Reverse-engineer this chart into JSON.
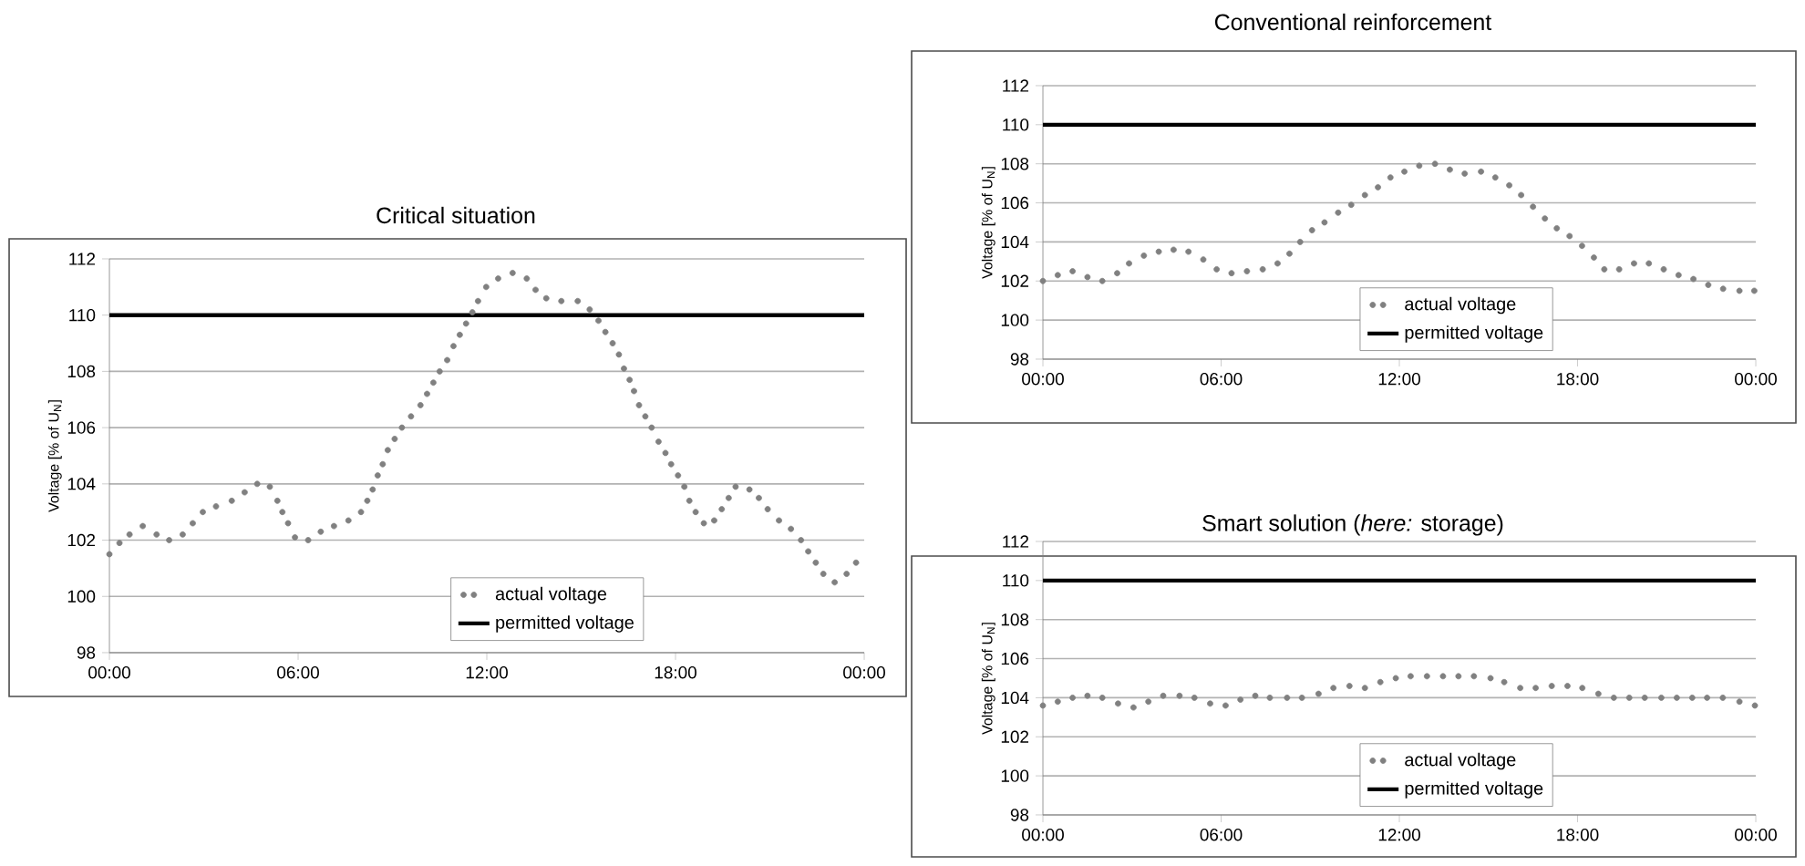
{
  "chart_data": [
    {
      "type": "scatter",
      "title": "Critical situation",
      "ylabel": "Voltage [% of U$_{N}$]",
      "xlim": [
        0,
        24
      ],
      "xticks": [
        {
          "value": 0,
          "label": "00:00"
        },
        {
          "value": 6,
          "label": "06:00"
        },
        {
          "value": 12,
          "label": "12:00"
        },
        {
          "value": 18,
          "label": "18:00"
        },
        {
          "value": 24,
          "label": "00:00"
        }
      ],
      "ylim": [
        98,
        112
      ],
      "yticks": [
        98,
        100,
        102,
        104,
        106,
        108,
        110,
        112
      ],
      "grid": "y",
      "legend": "bottom",
      "series": [
        {
          "name": "actual voltage",
          "marker": "circle",
          "color": "#808080",
          "x": [
            0,
            0.32,
            0.64,
            1.06,
            1.5,
            1.9,
            2.33,
            2.65,
            2.97,
            3.39,
            3.89,
            4.3,
            4.7,
            5.1,
            5.34,
            5.5,
            5.68,
            5.9,
            6.32,
            6.72,
            7.14,
            7.6,
            8.0,
            8.2,
            8.37,
            8.53,
            8.69,
            8.85,
            9.07,
            9.3,
            9.59,
            9.89,
            10.1,
            10.3,
            10.5,
            10.74,
            10.94,
            11.14,
            11.34,
            11.54,
            11.72,
            11.98,
            12.36,
            12.82,
            13.27,
            13.55,
            13.89,
            14.37,
            14.89,
            15.27,
            15.55,
            15.77,
            16.0,
            16.2,
            16.36,
            16.54,
            16.68,
            16.84,
            17.04,
            17.24,
            17.46,
            17.68,
            17.86,
            18.08,
            18.28,
            18.44,
            18.64,
            18.9,
            19.23,
            19.47,
            19.69,
            19.91,
            20.35,
            20.65,
            20.93,
            21.29,
            21.67,
            21.99,
            22.22,
            22.46,
            22.7,
            23.06,
            23.44,
            23.74
          ],
          "values": [
            101.5,
            101.9,
            102.2,
            102.5,
            102.2,
            102.0,
            102.2,
            102.6,
            103.0,
            103.2,
            103.4,
            103.7,
            104.0,
            103.9,
            103.4,
            103.0,
            102.6,
            102.1,
            102.0,
            102.3,
            102.5,
            102.7,
            103.0,
            103.4,
            103.8,
            104.3,
            104.7,
            105.2,
            105.6,
            106.0,
            106.4,
            106.8,
            107.2,
            107.6,
            108.0,
            108.4,
            108.9,
            109.3,
            109.7,
            110.1,
            110.5,
            111.0,
            111.3,
            111.5,
            111.3,
            110.9,
            110.6,
            110.5,
            110.5,
            110.2,
            109.8,
            109.4,
            109.0,
            108.6,
            108.1,
            107.7,
            107.3,
            106.8,
            106.4,
            106.0,
            105.5,
            105.1,
            104.7,
            104.3,
            103.9,
            103.4,
            103.0,
            102.6,
            102.7,
            103.1,
            103.5,
            103.9,
            103.8,
            103.5,
            103.1,
            102.7,
            102.4,
            102.0,
            101.6,
            101.2,
            100.8,
            100.5,
            100.8,
            101.2
          ]
        },
        {
          "name": "permitted voltage",
          "type": "line",
          "color": "#000000",
          "x": [
            0,
            24
          ],
          "values": [
            110,
            110
          ]
        }
      ]
    },
    {
      "type": "scatter",
      "title": "Conventional reinforcement",
      "ylabel": "Voltage [% of U$_{N}$]",
      "xlim": [
        0,
        24
      ],
      "xticks": [
        {
          "value": 0,
          "label": "00:00"
        },
        {
          "value": 6,
          "label": "06:00"
        },
        {
          "value": 12,
          "label": "12:00"
        },
        {
          "value": 18,
          "label": "18:00"
        },
        {
          "value": 24,
          "label": "00:00"
        }
      ],
      "ylim": [
        98,
        112
      ],
      "yticks": [
        98,
        100,
        102,
        104,
        106,
        108,
        110,
        112
      ],
      "grid": "y",
      "legend": "bottom",
      "series": [
        {
          "name": "actual voltage",
          "marker": "circle",
          "color": "#808080",
          "x": [
            0,
            0.5,
            1.0,
            1.5,
            2.0,
            2.5,
            2.9,
            3.4,
            3.9,
            4.4,
            4.9,
            5.4,
            5.85,
            6.35,
            6.87,
            7.4,
            7.9,
            8.3,
            8.66,
            9.06,
            9.48,
            9.94,
            10.38,
            10.84,
            11.28,
            11.7,
            12.17,
            12.67,
            13.2,
            13.7,
            14.2,
            14.75,
            15.23,
            15.7,
            16.1,
            16.5,
            16.9,
            17.3,
            17.73,
            18.15,
            18.55,
            18.9,
            19.4,
            19.9,
            20.4,
            20.9,
            21.4,
            21.9,
            22.4,
            22.9,
            23.45,
            23.95
          ],
          "values": [
            102.0,
            102.3,
            102.5,
            102.2,
            102.0,
            102.4,
            102.9,
            103.3,
            103.5,
            103.6,
            103.5,
            103.1,
            102.6,
            102.4,
            102.5,
            102.6,
            102.9,
            103.4,
            104.0,
            104.6,
            105.0,
            105.5,
            105.9,
            106.4,
            106.8,
            107.3,
            107.6,
            107.9,
            108.0,
            107.7,
            107.5,
            107.6,
            107.3,
            106.9,
            106.4,
            105.8,
            105.2,
            104.7,
            104.3,
            103.8,
            103.2,
            102.6,
            102.6,
            102.9,
            102.9,
            102.6,
            102.3,
            102.1,
            101.8,
            101.6,
            101.5,
            101.5
          ]
        },
        {
          "name": "permitted voltage",
          "type": "line",
          "color": "#000000",
          "x": [
            0,
            24
          ],
          "values": [
            110,
            110
          ]
        }
      ]
    },
    {
      "type": "scatter",
      "title": "Smart solution (*here:* storage)",
      "ylabel": "Voltage [% of U$_{N}$]",
      "xlim": [
        0,
        24
      ],
      "xticks": [
        {
          "value": 0,
          "label": "00:00"
        },
        {
          "value": 6,
          "label": "06:00"
        },
        {
          "value": 12,
          "label": "12:00"
        },
        {
          "value": 18,
          "label": "18:00"
        },
        {
          "value": 24,
          "label": "00:00"
        }
      ],
      "ylim": [
        98,
        112
      ],
      "yticks": [
        98,
        100,
        102,
        104,
        106,
        108,
        110,
        112
      ],
      "grid": "y",
      "legend": "bottom",
      "series": [
        {
          "name": "actual voltage",
          "marker": "circle",
          "color": "#808080",
          "x": [
            0,
            0.5,
            1.0,
            1.5,
            2.0,
            2.53,
            3.05,
            3.55,
            4.05,
            4.6,
            5.1,
            5.63,
            6.15,
            6.65,
            7.15,
            7.64,
            8.22,
            8.72,
            9.28,
            9.78,
            10.32,
            10.84,
            11.36,
            11.88,
            12.38,
            12.93,
            13.47,
            13.99,
            14.51,
            15.07,
            15.53,
            16.07,
            16.59,
            17.13,
            17.66,
            18.16,
            18.7,
            19.22,
            19.74,
            20.26,
            20.82,
            21.34,
            21.86,
            22.36,
            22.89,
            23.45,
            23.97
          ],
          "values": [
            103.6,
            103.8,
            104.0,
            104.1,
            104.0,
            103.7,
            103.5,
            103.8,
            104.1,
            104.1,
            104.0,
            103.7,
            103.6,
            103.9,
            104.1,
            104.0,
            104.0,
            104.0,
            104.2,
            104.5,
            104.6,
            104.5,
            104.8,
            105.0,
            105.1,
            105.1,
            105.1,
            105.1,
            105.1,
            105.0,
            104.8,
            104.5,
            104.5,
            104.6,
            104.6,
            104.5,
            104.2,
            104.0,
            104.0,
            104.0,
            104.0,
            104.0,
            104.0,
            104.0,
            104.0,
            103.8,
            103.6
          ]
        },
        {
          "name": "permitted voltage",
          "type": "line",
          "color": "#000000",
          "x": [
            0,
            24
          ],
          "values": [
            110,
            110
          ]
        }
      ]
    }
  ]
}
